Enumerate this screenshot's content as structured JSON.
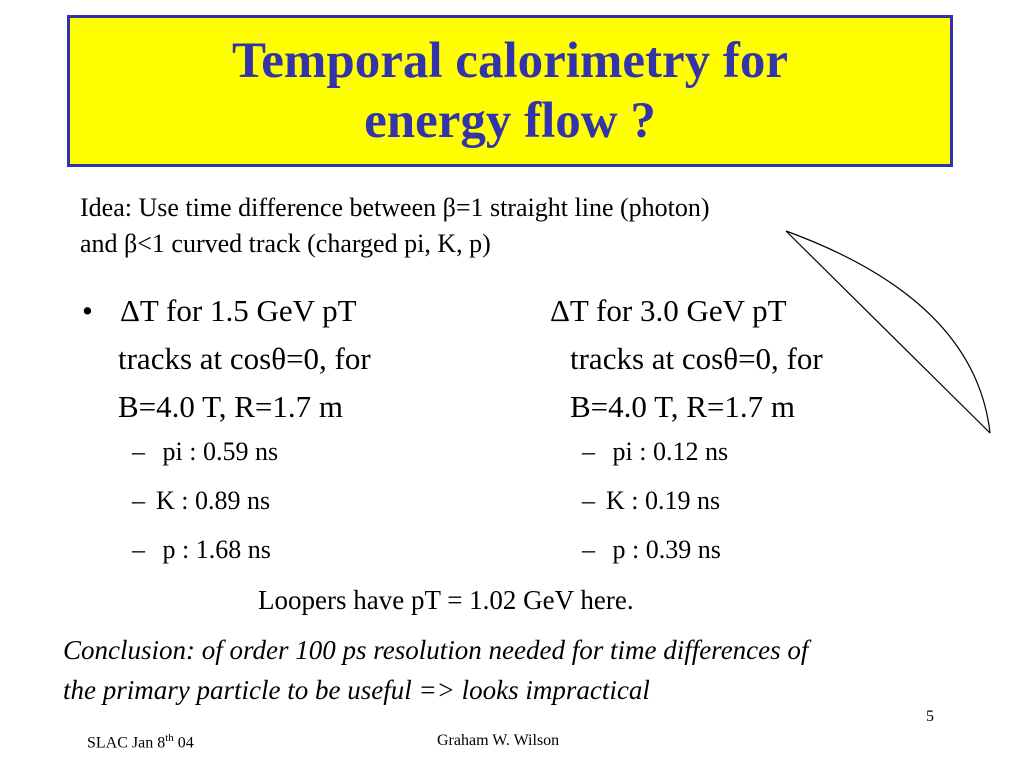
{
  "title": {
    "line1": "Temporal calorimetry for",
    "line2": "energy flow ?",
    "color": "#3333aa",
    "background": "#ffff00"
  },
  "idea": {
    "line1": "Idea: Use time difference between β=1 straight line (photon)",
    "line2": "and β<1 curved track (charged pi, K, p)"
  },
  "left_column": {
    "bullet": "•",
    "heading_line1": "ΔT for 1.5 GeV pT",
    "heading_line2": "tracks at cosθ=0, for",
    "heading_line3": "B=4.0 T, R=1.7 m",
    "items": [
      {
        "dash": "–",
        "text": "pi : 0.59 ns"
      },
      {
        "dash": "–",
        "text": "K :  0.89 ns"
      },
      {
        "dash": "–",
        "text": "p :  1.68 ns"
      }
    ]
  },
  "right_column": {
    "heading_line1": "ΔT for 3.0 GeV pT",
    "heading_line2": "tracks at cosθ=0, for",
    "heading_line3": "B=4.0 T, R=1.7 m",
    "items": [
      {
        "dash": "–",
        "text": "pi : 0.12 ns"
      },
      {
        "dash": "–",
        "text": "K :  0.19 ns"
      },
      {
        "dash": "–",
        "text": "p :  0.39 ns"
      }
    ]
  },
  "loopers": "Loopers have pT = 1.02 GeV here.",
  "conclusion": {
    "line1": "Conclusion: of order 100 ps resolution needed for time differences of",
    "line2": "the primary particle to be useful => looks impractical"
  },
  "page_number": "5",
  "footer": {
    "left_prefix": "SLAC Jan 8",
    "left_sup": "th",
    "left_suffix": " 04",
    "right": "Graham W. Wilson"
  }
}
